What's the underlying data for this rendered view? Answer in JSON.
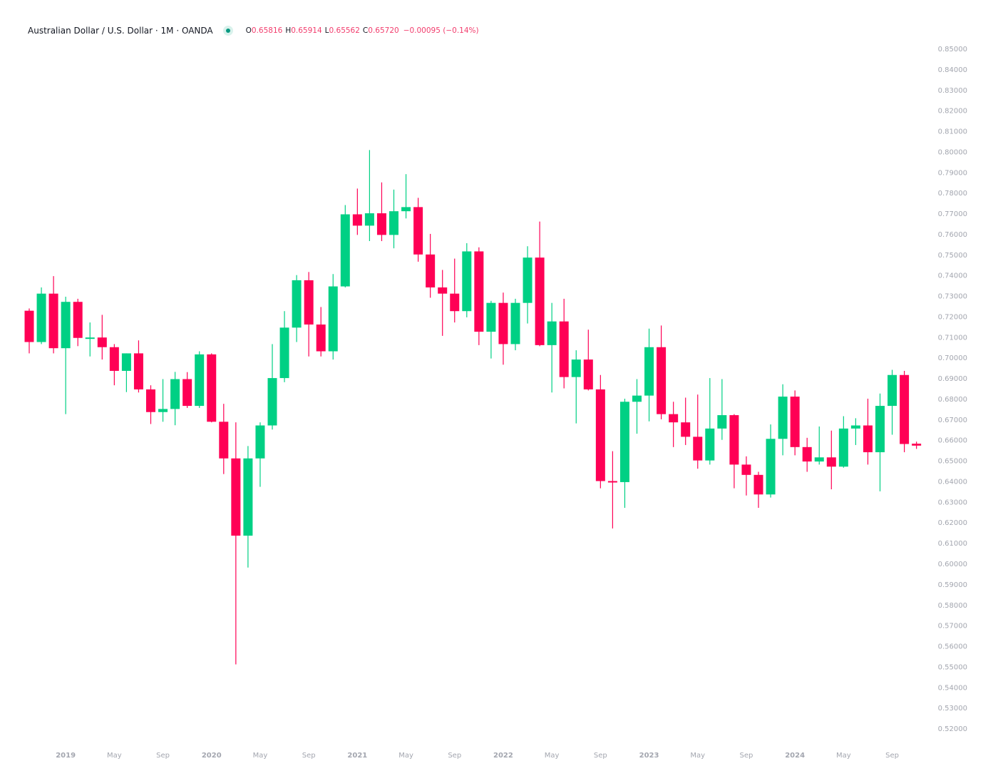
{
  "legend": {
    "title": "Australian Dollar / U.S. Dollar · 1M · OANDA",
    "open_label": "O",
    "open": "0.65816",
    "high_label": "H",
    "high": "0.65914",
    "low_label": "L",
    "low": "0.65562",
    "close_label": "C",
    "close": "0.65720",
    "change": "−0.00095 (−0.14%)"
  },
  "colors": {
    "up": "#00d084",
    "down": "#ff0055",
    "axis_text": "#a3a6af",
    "status_dot": "#089981"
  },
  "chart_data": {
    "type": "candlestick",
    "interval": "1M",
    "ylim": [
      0.515,
      0.852
    ],
    "grid": false,
    "y_ticks": [
      "0.85000",
      "0.84000",
      "0.83000",
      "0.82000",
      "0.81000",
      "0.80000",
      "0.79000",
      "0.78000",
      "0.77000",
      "0.76000",
      "0.75000",
      "0.74000",
      "0.73000",
      "0.72000",
      "0.71000",
      "0.70000",
      "0.69000",
      "0.68000",
      "0.67000",
      "0.66000",
      "0.65000",
      "0.64000",
      "0.63000",
      "0.62000",
      "0.61000",
      "0.60000",
      "0.59000",
      "0.58000",
      "0.57000",
      "0.56000",
      "0.55000",
      "0.54000",
      "0.53000",
      "0.52000"
    ],
    "x_ticks": [
      {
        "label": "2019",
        "date": "2019-01",
        "year": true
      },
      {
        "label": "May",
        "date": "2019-05"
      },
      {
        "label": "Sep",
        "date": "2019-09"
      },
      {
        "label": "2020",
        "date": "2020-01",
        "year": true
      },
      {
        "label": "May",
        "date": "2020-05"
      },
      {
        "label": "Sep",
        "date": "2020-09"
      },
      {
        "label": "2021",
        "date": "2021-01",
        "year": true
      },
      {
        "label": "May",
        "date": "2021-05"
      },
      {
        "label": "Sep",
        "date": "2021-09"
      },
      {
        "label": "2022",
        "date": "2022-01",
        "year": true
      },
      {
        "label": "May",
        "date": "2022-05"
      },
      {
        "label": "Sep",
        "date": "2022-09"
      },
      {
        "label": "2023",
        "date": "2023-01",
        "year": true
      },
      {
        "label": "May",
        "date": "2023-05"
      },
      {
        "label": "Sep",
        "date": "2023-09"
      },
      {
        "label": "2024",
        "date": "2024-01",
        "year": true
      },
      {
        "label": "May",
        "date": "2024-05"
      },
      {
        "label": "Sep",
        "date": "2024-09"
      }
    ],
    "columns": [
      "date",
      "open",
      "high",
      "low",
      "close"
    ],
    "candles": [
      [
        "2018-10",
        0.7227,
        0.7238,
        0.702,
        0.7075
      ],
      [
        "2018-11",
        0.7075,
        0.734,
        0.7065,
        0.731
      ],
      [
        "2018-12",
        0.731,
        0.7395,
        0.702,
        0.7045
      ],
      [
        "2019-01",
        0.7045,
        0.7295,
        0.6725,
        0.727
      ],
      [
        "2019-02",
        0.727,
        0.7285,
        0.7055,
        0.7095
      ],
      [
        "2019-03",
        0.7095,
        0.717,
        0.7005,
        0.7097
      ],
      [
        "2019-04",
        0.7097,
        0.7207,
        0.699,
        0.705
      ],
      [
        "2019-05",
        0.705,
        0.7065,
        0.6865,
        0.6935
      ],
      [
        "2019-06",
        0.6935,
        0.702,
        0.6832,
        0.702
      ],
      [
        "2019-07",
        0.702,
        0.7083,
        0.683,
        0.6845
      ],
      [
        "2019-08",
        0.6845,
        0.6865,
        0.6677,
        0.6735
      ],
      [
        "2019-09",
        0.6735,
        0.6895,
        0.6688,
        0.675
      ],
      [
        "2019-10",
        0.675,
        0.693,
        0.6671,
        0.6895
      ],
      [
        "2019-11",
        0.6895,
        0.6929,
        0.6755,
        0.6765
      ],
      [
        "2019-12",
        0.6765,
        0.703,
        0.6755,
        0.7015
      ],
      [
        "2020-01",
        0.7015,
        0.702,
        0.6685,
        0.6688
      ],
      [
        "2020-02",
        0.6688,
        0.6775,
        0.6434,
        0.651
      ],
      [
        "2020-03",
        0.651,
        0.6685,
        0.551,
        0.6135
      ],
      [
        "2020-04",
        0.6135,
        0.657,
        0.598,
        0.651
      ],
      [
        "2020-05",
        0.651,
        0.6685,
        0.6372,
        0.667
      ],
      [
        "2020-06",
        0.667,
        0.7065,
        0.665,
        0.69
      ],
      [
        "2020-07",
        0.69,
        0.7225,
        0.688,
        0.7145
      ],
      [
        "2020-08",
        0.7145,
        0.74,
        0.7075,
        0.7375
      ],
      [
        "2020-09",
        0.7375,
        0.7415,
        0.7005,
        0.716
      ],
      [
        "2020-10",
        0.716,
        0.7245,
        0.7005,
        0.703
      ],
      [
        "2020-11",
        0.703,
        0.7405,
        0.699,
        0.7345
      ],
      [
        "2020-12",
        0.7345,
        0.774,
        0.734,
        0.7695
      ],
      [
        "2021-01",
        0.7695,
        0.782,
        0.7595,
        0.764
      ],
      [
        "2021-02",
        0.764,
        0.8007,
        0.7565,
        0.77
      ],
      [
        "2021-03",
        0.77,
        0.785,
        0.7565,
        0.7595
      ],
      [
        "2021-04",
        0.7595,
        0.7815,
        0.753,
        0.771
      ],
      [
        "2021-05",
        0.771,
        0.789,
        0.7675,
        0.773
      ],
      [
        "2021-06",
        0.773,
        0.7775,
        0.7465,
        0.75
      ],
      [
        "2021-07",
        0.75,
        0.76,
        0.729,
        0.734
      ],
      [
        "2021-08",
        0.734,
        0.7425,
        0.7105,
        0.731
      ],
      [
        "2021-09",
        0.731,
        0.748,
        0.717,
        0.7225
      ],
      [
        "2021-10",
        0.7225,
        0.7555,
        0.7195,
        0.7515
      ],
      [
        "2021-11",
        0.7515,
        0.7535,
        0.706,
        0.7125
      ],
      [
        "2021-12",
        0.7125,
        0.7275,
        0.6995,
        0.7265
      ],
      [
        "2022-01",
        0.7265,
        0.7315,
        0.6965,
        0.7065
      ],
      [
        "2022-02",
        0.7065,
        0.7285,
        0.7035,
        0.7265
      ],
      [
        "2022-03",
        0.7265,
        0.754,
        0.7165,
        0.7485
      ],
      [
        "2022-04",
        0.7485,
        0.766,
        0.7055,
        0.706
      ],
      [
        "2022-05",
        0.706,
        0.7265,
        0.683,
        0.7175
      ],
      [
        "2022-06",
        0.7175,
        0.7285,
        0.685,
        0.6905
      ],
      [
        "2022-07",
        0.6905,
        0.7035,
        0.668,
        0.699
      ],
      [
        "2022-08",
        0.699,
        0.7135,
        0.684,
        0.6845
      ],
      [
        "2022-09",
        0.6845,
        0.6915,
        0.6365,
        0.64
      ],
      [
        "2022-10",
        0.64,
        0.6545,
        0.617,
        0.6395
      ],
      [
        "2022-11",
        0.6395,
        0.68,
        0.627,
        0.6785
      ],
      [
        "2022-12",
        0.6785,
        0.6895,
        0.663,
        0.6815
      ],
      [
        "2023-01",
        0.6815,
        0.714,
        0.669,
        0.705
      ],
      [
        "2023-02",
        0.705,
        0.7155,
        0.67,
        0.6725
      ],
      [
        "2023-03",
        0.6725,
        0.6785,
        0.6565,
        0.6685
      ],
      [
        "2023-04",
        0.6685,
        0.6805,
        0.6575,
        0.6615
      ],
      [
        "2023-05",
        0.6615,
        0.682,
        0.646,
        0.65
      ],
      [
        "2023-06",
        0.65,
        0.69,
        0.648,
        0.6655
      ],
      [
        "2023-07",
        0.6655,
        0.6895,
        0.66,
        0.672
      ],
      [
        "2023-08",
        0.672,
        0.6725,
        0.6365,
        0.648
      ],
      [
        "2023-09",
        0.648,
        0.652,
        0.633,
        0.643
      ],
      [
        "2023-10",
        0.643,
        0.6445,
        0.627,
        0.6335
      ],
      [
        "2023-11",
        0.6335,
        0.6675,
        0.632,
        0.6605
      ],
      [
        "2023-12",
        0.6605,
        0.687,
        0.6525,
        0.681
      ],
      [
        "2024-01",
        0.681,
        0.684,
        0.6525,
        0.6565
      ],
      [
        "2024-02",
        0.6565,
        0.661,
        0.6445,
        0.6495
      ],
      [
        "2024-03",
        0.6495,
        0.6665,
        0.648,
        0.6515
      ],
      [
        "2024-04",
        0.6515,
        0.6645,
        0.636,
        0.647
      ],
      [
        "2024-05",
        0.647,
        0.6715,
        0.6465,
        0.6655
      ],
      [
        "2024-06",
        0.6655,
        0.6705,
        0.6575,
        0.667
      ],
      [
        "2024-07",
        0.667,
        0.68,
        0.648,
        0.654
      ],
      [
        "2024-08",
        0.654,
        0.6825,
        0.635,
        0.6765
      ],
      [
        "2024-09",
        0.6765,
        0.694,
        0.6625,
        0.6915
      ],
      [
        "2024-10",
        0.6915,
        0.6935,
        0.654,
        0.658
      ],
      [
        "2024-11",
        0.65816,
        0.65914,
        0.65562,
        0.6572
      ]
    ]
  }
}
